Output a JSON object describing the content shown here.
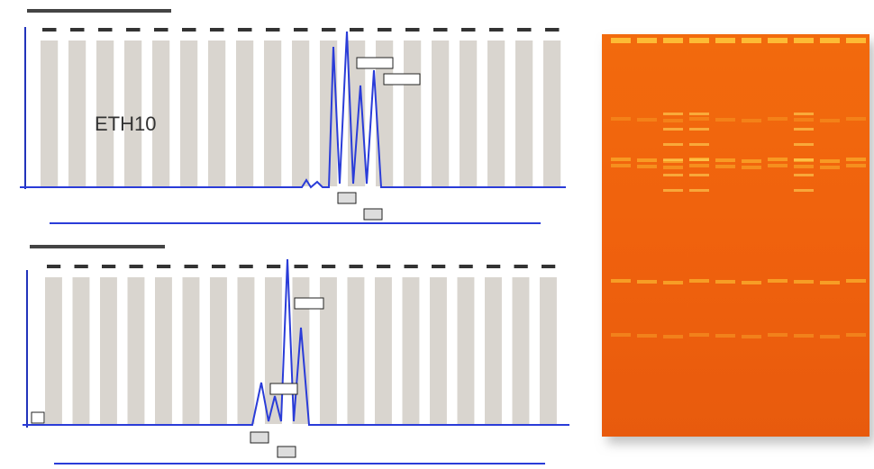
{
  "panel_label": "ETH10"
}
